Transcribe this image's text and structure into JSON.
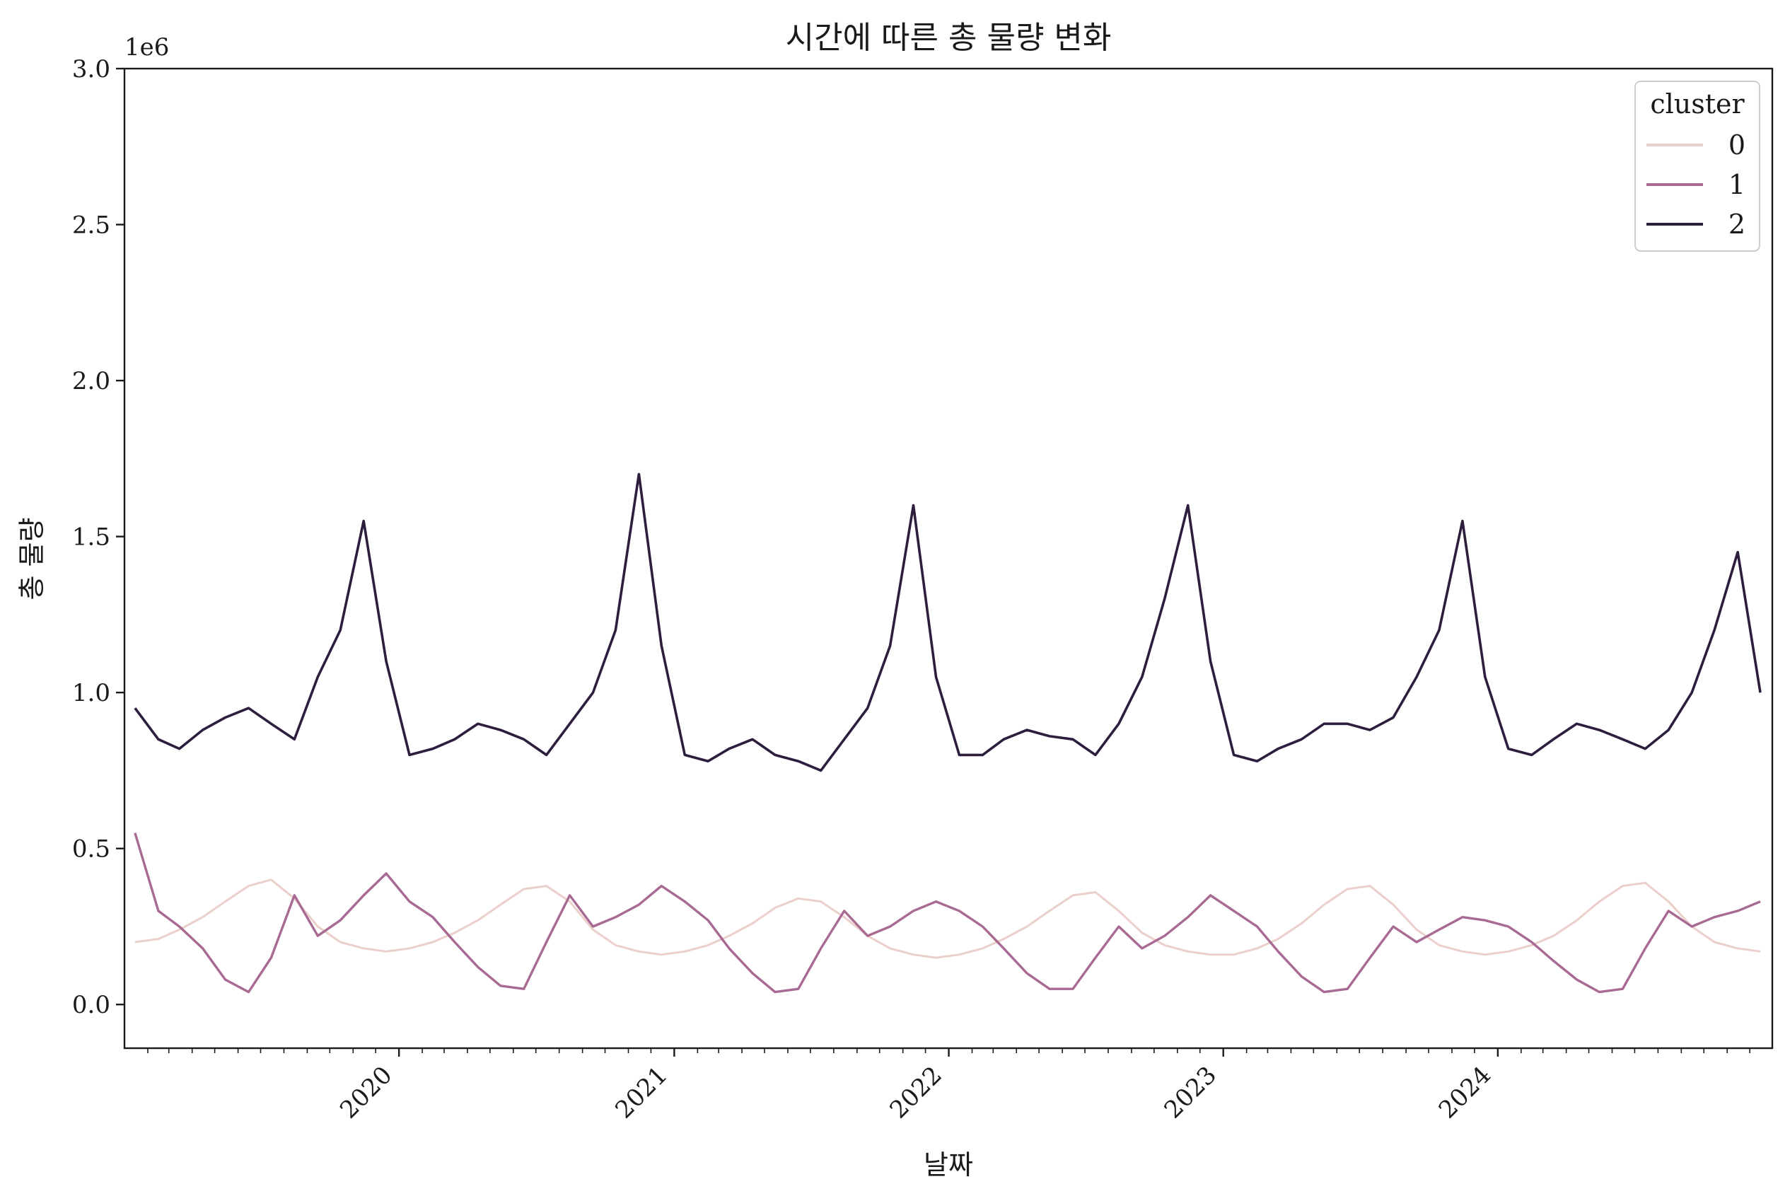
{
  "chart_data": {
    "type": "line",
    "title": "시간에 따른 총 물량 변화",
    "xlabel": "날짜",
    "ylabel": "총 물량",
    "y_offset_label": "1e6",
    "y_scale": 1000000,
    "xlim": [
      "2019-01-01",
      "2024-12-31"
    ],
    "ylim": [
      -0.14,
      3.0
    ],
    "y_ticks": [
      0.0,
      0.5,
      1.0,
      1.5,
      2.0,
      2.5,
      3.0
    ],
    "y_tick_labels": [
      "0.0",
      "0.5",
      "1.0",
      "1.5",
      "2.0",
      "2.5",
      "3.0"
    ],
    "x_ticks": [
      "2020-01-01",
      "2021-01-01",
      "2022-01-01",
      "2023-01-01",
      "2024-01-01"
    ],
    "x_tick_labels": [
      "2020",
      "2021",
      "2022",
      "2023",
      "2024"
    ],
    "grid": false,
    "legend": {
      "title": "cluster",
      "placement": "top-right"
    },
    "x_unit": "month",
    "series": [
      {
        "name": "0",
        "color": "#ebcfcb",
        "values": [
          [
            0,
            0.2
          ],
          [
            1,
            0.21
          ],
          [
            2,
            0.24
          ],
          [
            3,
            0.28
          ],
          [
            4,
            0.33
          ],
          [
            5,
            0.38
          ],
          [
            6,
            0.4
          ],
          [
            7,
            0.34
          ],
          [
            8,
            0.25
          ],
          [
            9,
            0.2
          ],
          [
            10,
            0.18
          ],
          [
            11,
            0.17
          ],
          [
            12,
            0.18
          ],
          [
            13,
            0.2
          ],
          [
            14,
            0.23
          ],
          [
            15,
            0.27
          ],
          [
            16,
            0.32
          ],
          [
            17,
            0.37
          ],
          [
            18,
            0.38
          ],
          [
            19,
            0.33
          ],
          [
            20,
            0.24
          ],
          [
            21,
            0.19
          ],
          [
            22,
            0.17
          ],
          [
            23,
            0.16
          ],
          [
            24,
            0.17
          ],
          [
            25,
            0.19
          ],
          [
            26,
            0.22
          ],
          [
            27,
            0.26
          ],
          [
            28,
            0.31
          ],
          [
            29,
            0.34
          ],
          [
            30,
            0.33
          ],
          [
            31,
            0.28
          ],
          [
            32,
            0.22
          ],
          [
            33,
            0.18
          ],
          [
            34,
            0.16
          ],
          [
            35,
            0.15
          ],
          [
            36,
            0.16
          ],
          [
            37,
            0.18
          ],
          [
            38,
            0.21
          ],
          [
            39,
            0.25
          ],
          [
            40,
            0.3
          ],
          [
            41,
            0.35
          ],
          [
            42,
            0.36
          ],
          [
            43,
            0.3
          ],
          [
            44,
            0.23
          ],
          [
            45,
            0.19
          ],
          [
            46,
            0.17
          ],
          [
            47,
            0.16
          ],
          [
            48,
            0.16
          ],
          [
            49,
            0.18
          ],
          [
            50,
            0.21
          ],
          [
            51,
            0.26
          ],
          [
            52,
            0.32
          ],
          [
            53,
            0.37
          ],
          [
            54,
            0.38
          ],
          [
            55,
            0.32
          ],
          [
            56,
            0.24
          ],
          [
            57,
            0.19
          ],
          [
            58,
            0.17
          ],
          [
            59,
            0.16
          ],
          [
            60,
            0.17
          ],
          [
            61,
            0.19
          ],
          [
            62,
            0.22
          ],
          [
            63,
            0.27
          ],
          [
            64,
            0.33
          ],
          [
            65,
            0.38
          ],
          [
            66,
            0.39
          ],
          [
            67,
            0.33
          ],
          [
            68,
            0.25
          ],
          [
            69,
            0.2
          ],
          [
            70,
            0.18
          ],
          [
            71,
            0.17
          ]
        ]
      },
      {
        "name": "1",
        "color": "#a86a92",
        "values": [
          [
            0,
            0.55
          ],
          [
            1,
            0.3
          ],
          [
            2,
            0.25
          ],
          [
            3,
            0.18
          ],
          [
            4,
            0.08
          ],
          [
            5,
            0.04
          ],
          [
            6,
            0.15
          ],
          [
            7,
            0.35
          ],
          [
            8,
            0.22
          ],
          [
            9,
            0.27
          ],
          [
            10,
            0.35
          ],
          [
            11,
            0.42
          ],
          [
            12,
            0.33
          ],
          [
            13,
            0.28
          ],
          [
            14,
            0.2
          ],
          [
            15,
            0.12
          ],
          [
            16,
            0.06
          ],
          [
            17,
            0.05
          ],
          [
            18,
            0.2
          ],
          [
            19,
            0.35
          ],
          [
            20,
            0.25
          ],
          [
            21,
            0.28
          ],
          [
            22,
            0.32
          ],
          [
            23,
            0.38
          ],
          [
            24,
            0.33
          ],
          [
            25,
            0.27
          ],
          [
            26,
            0.18
          ],
          [
            27,
            0.1
          ],
          [
            28,
            0.04
          ],
          [
            29,
            0.05
          ],
          [
            30,
            0.18
          ],
          [
            31,
            0.3
          ],
          [
            32,
            0.22
          ],
          [
            33,
            0.25
          ],
          [
            34,
            0.3
          ],
          [
            35,
            0.33
          ],
          [
            36,
            0.3
          ],
          [
            37,
            0.25
          ],
          [
            38,
            0.18
          ],
          [
            39,
            0.1
          ],
          [
            40,
            0.05
          ],
          [
            41,
            0.05
          ],
          [
            42,
            0.15
          ],
          [
            43,
            0.25
          ],
          [
            44,
            0.18
          ],
          [
            45,
            0.22
          ],
          [
            46,
            0.28
          ],
          [
            47,
            0.35
          ],
          [
            48,
            0.3
          ],
          [
            49,
            0.25
          ],
          [
            50,
            0.17
          ],
          [
            51,
            0.09
          ],
          [
            52,
            0.04
          ],
          [
            53,
            0.05
          ],
          [
            54,
            0.15
          ],
          [
            55,
            0.25
          ],
          [
            56,
            0.2
          ],
          [
            57,
            0.24
          ],
          [
            58,
            0.28
          ],
          [
            59,
            0.27
          ],
          [
            60,
            0.25
          ],
          [
            61,
            0.2
          ],
          [
            62,
            0.14
          ],
          [
            63,
            0.08
          ],
          [
            64,
            0.04
          ],
          [
            65,
            0.05
          ],
          [
            66,
            0.18
          ],
          [
            67,
            0.3
          ],
          [
            68,
            0.25
          ],
          [
            69,
            0.28
          ],
          [
            70,
            0.3
          ],
          [
            71,
            0.33
          ]
        ]
      },
      {
        "name": "2",
        "color": "#2d1e3e",
        "values": [
          [
            0,
            0.95
          ],
          [
            1,
            0.85
          ],
          [
            2,
            0.82
          ],
          [
            3,
            0.88
          ],
          [
            4,
            0.92
          ],
          [
            5,
            0.95
          ],
          [
            6,
            0.9
          ],
          [
            7,
            0.85
          ],
          [
            8,
            1.05
          ],
          [
            9,
            1.2
          ],
          [
            10,
            1.55
          ],
          [
            11,
            1.1
          ],
          [
            12,
            0.8
          ],
          [
            13,
            0.82
          ],
          [
            14,
            0.85
          ],
          [
            15,
            0.9
          ],
          [
            16,
            0.88
          ],
          [
            17,
            0.85
          ],
          [
            18,
            0.8
          ],
          [
            19,
            0.9
          ],
          [
            20,
            1.0
          ],
          [
            21,
            1.2
          ],
          [
            22,
            1.7
          ],
          [
            23,
            1.15
          ],
          [
            24,
            0.8
          ],
          [
            25,
            0.78
          ],
          [
            26,
            0.82
          ],
          [
            27,
            0.85
          ],
          [
            28,
            0.8
          ],
          [
            29,
            0.78
          ],
          [
            30,
            0.75
          ],
          [
            31,
            0.85
          ],
          [
            32,
            0.95
          ],
          [
            33,
            1.15
          ],
          [
            34,
            1.6
          ],
          [
            35,
            1.05
          ],
          [
            36,
            0.8
          ],
          [
            37,
            0.8
          ],
          [
            38,
            0.85
          ],
          [
            39,
            0.88
          ],
          [
            40,
            0.86
          ],
          [
            41,
            0.85
          ],
          [
            42,
            0.8
          ],
          [
            43,
            0.9
          ],
          [
            44,
            1.05
          ],
          [
            45,
            1.3
          ],
          [
            46,
            1.6
          ],
          [
            47,
            1.1
          ],
          [
            48,
            0.8
          ],
          [
            49,
            0.78
          ],
          [
            50,
            0.82
          ],
          [
            51,
            0.85
          ],
          [
            52,
            0.9
          ],
          [
            53,
            0.9
          ],
          [
            54,
            0.88
          ],
          [
            55,
            0.92
          ],
          [
            56,
            1.05
          ],
          [
            57,
            1.2
          ],
          [
            58,
            1.55
          ],
          [
            59,
            1.05
          ],
          [
            60,
            0.82
          ],
          [
            61,
            0.8
          ],
          [
            62,
            0.85
          ],
          [
            63,
            0.9
          ],
          [
            64,
            0.88
          ],
          [
            65,
            0.85
          ],
          [
            66,
            0.82
          ],
          [
            67,
            0.88
          ],
          [
            68,
            1.0
          ],
          [
            69,
            1.2
          ],
          [
            70,
            1.45
          ],
          [
            71,
            1.0
          ]
        ]
      }
    ]
  }
}
